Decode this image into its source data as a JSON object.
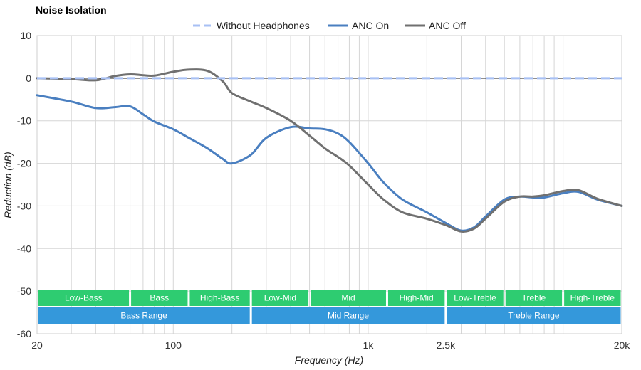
{
  "chart_data": {
    "type": "line",
    "title": "Noise Isolation",
    "xlabel": "Frequency (Hz)",
    "ylabel": "Reduction (dB)",
    "x_scale": "log",
    "xlim": [
      20,
      20000
    ],
    "ylim": [
      -60,
      10
    ],
    "y_ticks": [
      10,
      0,
      -10,
      -20,
      -30,
      -40,
      -50,
      -60
    ],
    "x_tick_labels": [
      {
        "value": 20,
        "label": "20"
      },
      {
        "value": 100,
        "label": "100"
      },
      {
        "value": 1000,
        "label": "1k"
      },
      {
        "value": 2500,
        "label": "2.5k"
      },
      {
        "value": 20000,
        "label": "20k"
      }
    ],
    "grid": true,
    "legend": "top-center",
    "series": [
      {
        "name": "Without Headphones",
        "color": "#a8c0f4",
        "style": "dashed",
        "x": [
          20,
          20000
        ],
        "y": [
          0,
          0
        ]
      },
      {
        "name": "ANC On",
        "color": "#4a7fc0",
        "style": "solid",
        "x": [
          20,
          30,
          40,
          50,
          60,
          70,
          80,
          100,
          120,
          150,
          180,
          200,
          250,
          300,
          400,
          500,
          600,
          700,
          800,
          1000,
          1200,
          1500,
          2000,
          2500,
          3000,
          3500,
          4000,
          5000,
          6000,
          7000,
          8000,
          10000,
          12000,
          15000,
          20000
        ],
        "y": [
          -4.0,
          -5.5,
          -7.0,
          -6.8,
          -6.6,
          -8.5,
          -10.2,
          -12.0,
          -14.0,
          -16.5,
          -19.0,
          -20.0,
          -18.0,
          -14.0,
          -11.5,
          -11.8,
          -12.0,
          -13.0,
          -15.0,
          -20.0,
          -24.5,
          -28.5,
          -31.5,
          -34.0,
          -35.8,
          -35.0,
          -32.5,
          -28.5,
          -27.8,
          -28.0,
          -28.0,
          -27.0,
          -26.7,
          -28.5,
          -30.0
        ]
      },
      {
        "name": "ANC Off",
        "color": "#707070",
        "style": "solid",
        "x": [
          20,
          30,
          40,
          50,
          60,
          70,
          80,
          100,
          120,
          150,
          180,
          200,
          250,
          300,
          400,
          500,
          600,
          700,
          800,
          1000,
          1200,
          1500,
          2000,
          2500,
          3000,
          3500,
          4000,
          5000,
          6000,
          7000,
          8000,
          10000,
          12000,
          15000,
          20000
        ],
        "y": [
          0.0,
          -0.2,
          -0.5,
          0.5,
          0.9,
          0.7,
          0.6,
          1.5,
          2.0,
          1.7,
          -0.8,
          -3.5,
          -5.5,
          -7.0,
          -10.0,
          -13.5,
          -16.5,
          -18.5,
          -20.5,
          -25.0,
          -28.5,
          -31.5,
          -33.0,
          -34.5,
          -36.0,
          -35.3,
          -33.0,
          -29.0,
          -27.8,
          -27.8,
          -27.5,
          -26.5,
          -26.3,
          -28.3,
          -30.0
        ]
      }
    ],
    "bands": {
      "row1": [
        {
          "label": "Low-Bass",
          "from": 20,
          "to": 60,
          "color": "#2ecc71"
        },
        {
          "label": "Bass",
          "from": 60,
          "to": 120,
          "color": "#2ecc71"
        },
        {
          "label": "High-Bass",
          "from": 120,
          "to": 250,
          "color": "#2ecc71"
        },
        {
          "label": "Low-Mid",
          "from": 250,
          "to": 500,
          "color": "#2ecc71"
        },
        {
          "label": "Mid",
          "from": 500,
          "to": 1250,
          "color": "#2ecc71"
        },
        {
          "label": "High-Mid",
          "from": 1250,
          "to": 2500,
          "color": "#2ecc71"
        },
        {
          "label": "Low-Treble",
          "from": 2500,
          "to": 5000,
          "color": "#2ecc71"
        },
        {
          "label": "Treble",
          "from": 5000,
          "to": 10000,
          "color": "#2ecc71"
        },
        {
          "label": "High-Treble",
          "from": 10000,
          "to": 20000,
          "color": "#2ecc71"
        }
      ],
      "row2": [
        {
          "label": "Bass Range",
          "from": 20,
          "to": 250,
          "color": "#3498db"
        },
        {
          "label": "Mid Range",
          "from": 250,
          "to": 2500,
          "color": "#3498db"
        },
        {
          "label": "Treble Range",
          "from": 2500,
          "to": 20000,
          "color": "#3498db"
        }
      ]
    }
  }
}
